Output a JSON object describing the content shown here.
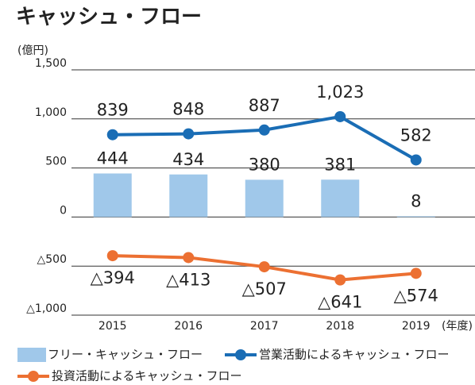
{
  "chart_data": {
    "type": "combo",
    "title": "キャッシュ・フロー",
    "y_label": "(億円)",
    "x_label": "(年度)",
    "categories": [
      "2015",
      "2016",
      "2017",
      "2018",
      "2019"
    ],
    "ylim": [
      -1000,
      1500
    ],
    "yticks": [
      {
        "value": 1500,
        "label": "1,500"
      },
      {
        "value": 1000,
        "label": "1,000"
      },
      500,
      0,
      {
        "value": -500,
        "label": "△500"
      },
      {
        "value": -1000,
        "label": "△1,000"
      }
    ],
    "grid": true,
    "series": [
      {
        "name": "フリー・キャッシュ・フロー",
        "type": "bar",
        "color": "#a0c8ea",
        "values": [
          444,
          434,
          380,
          381,
          8
        ]
      },
      {
        "name": "営業活動によるキャッシュ・フロー",
        "type": "line",
        "color": "#1a6db5",
        "values": [
          839,
          848,
          887,
          1023,
          582
        ],
        "value_labels": [
          "839",
          "848",
          "887",
          "1,023",
          "582"
        ]
      },
      {
        "name": "投資活動によるキャッシュ・フロー",
        "type": "line",
        "color": "#ec7032",
        "values": [
          -394,
          -413,
          -507,
          -641,
          -574
        ],
        "value_labels": [
          "△394",
          "△413",
          "△507",
          "△641",
          "△574"
        ]
      }
    ]
  }
}
